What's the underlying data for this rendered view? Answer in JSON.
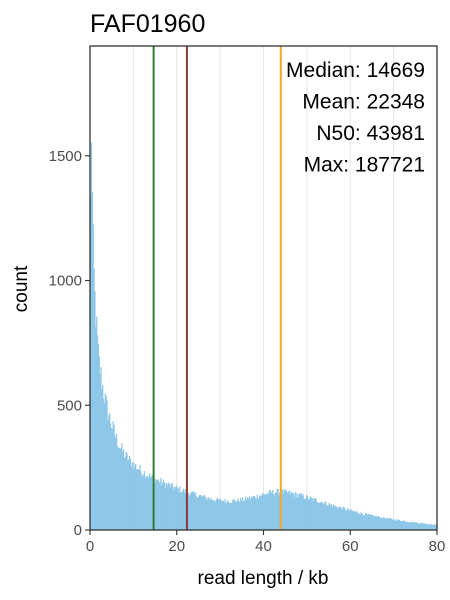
{
  "chart_data": {
    "type": "bar",
    "title": "FAF01960",
    "xlabel": "read length / kb",
    "ylabel": "count",
    "xlim": [
      0,
      80
    ],
    "ylim": [
      0,
      1940
    ],
    "x_ticks": [
      0,
      20,
      40,
      60,
      80
    ],
    "y_ticks": [
      0,
      500,
      1000,
      1500
    ],
    "x_minor_gridlines": [
      10,
      20,
      30,
      40,
      50,
      60,
      70
    ],
    "grid": true,
    "bar_color": "#8ec7e8",
    "histogram_anchor_points": [
      [
        0.1,
        1300
      ],
      [
        0.3,
        1610
      ],
      [
        0.6,
        1180
      ],
      [
        1,
        960
      ],
      [
        1.5,
        800
      ],
      [
        2,
        680
      ],
      [
        3,
        560
      ],
      [
        4,
        480
      ],
      [
        5,
        420
      ],
      [
        6,
        370
      ],
      [
        7,
        330
      ],
      [
        8,
        300
      ],
      [
        10,
        262
      ],
      [
        12,
        235
      ],
      [
        14,
        212
      ],
      [
        16,
        195
      ],
      [
        18,
        180
      ],
      [
        20,
        166
      ],
      [
        22,
        154
      ],
      [
        24,
        143
      ],
      [
        26,
        133
      ],
      [
        28,
        124
      ],
      [
        30,
        118
      ],
      [
        32,
        116
      ],
      [
        34,
        118
      ],
      [
        36,
        124
      ],
      [
        38,
        133
      ],
      [
        40,
        143
      ],
      [
        42,
        150
      ],
      [
        43,
        152
      ],
      [
        44,
        152
      ],
      [
        46,
        148
      ],
      [
        48,
        140
      ],
      [
        50,
        130
      ],
      [
        52,
        120
      ],
      [
        54,
        109
      ],
      [
        56,
        98
      ],
      [
        58,
        88
      ],
      [
        60,
        78
      ],
      [
        62,
        69
      ],
      [
        64,
        61
      ],
      [
        66,
        54
      ],
      [
        68,
        48
      ],
      [
        70,
        42
      ],
      [
        72,
        37
      ],
      [
        74,
        32
      ],
      [
        76,
        28
      ],
      [
        78,
        24
      ],
      [
        80,
        21
      ]
    ],
    "vlines": [
      {
        "x": 14.669,
        "color": "#2e7d32"
      },
      {
        "x": 22.348,
        "color": "#8b3a3a"
      },
      {
        "x": 43.981,
        "color": "#f5a623"
      }
    ],
    "annotations": [
      {
        "label": "Median:",
        "value": "14669"
      },
      {
        "label": "Mean:",
        "value": "22348"
      },
      {
        "label": "N50:",
        "value": "43981"
      },
      {
        "label": "Max:",
        "value": "187721"
      }
    ]
  }
}
